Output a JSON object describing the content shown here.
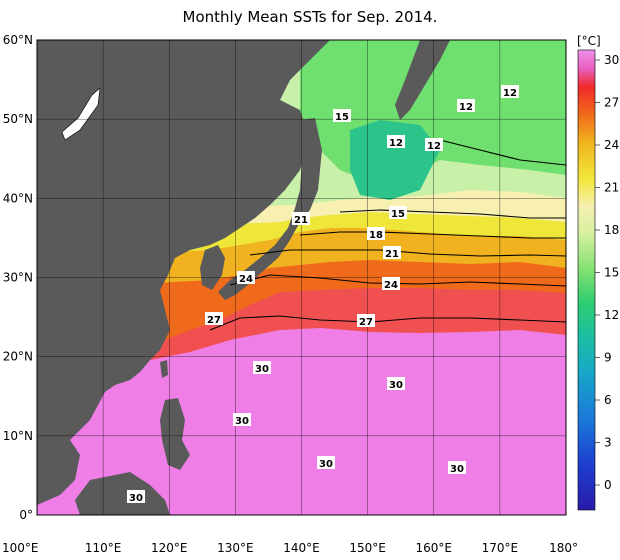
{
  "title": "Monthly Mean SSTs for Sep. 2014.",
  "colorbar": {
    "unit_label": "[°C]",
    "ticks": [
      "30",
      "27",
      "24",
      "21",
      "18",
      "15",
      "12",
      "9",
      "6",
      "3",
      "0"
    ]
  },
  "axes": {
    "lat_labels": [
      "60°N",
      "50°N",
      "40°N",
      "30°N",
      "20°N",
      "10°N",
      "0°"
    ],
    "lon_labels": [
      "100°E",
      "110°E",
      "120°E",
      "130°E",
      "140°E",
      "150°E",
      "160°E",
      "170°E",
      "180°"
    ]
  },
  "isotherm_labels": [
    "15",
    "12",
    "12",
    "12",
    "12",
    "21",
    "15",
    "18",
    "21",
    "24",
    "24",
    "27",
    "27",
    "30",
    "30",
    "30",
    "30",
    "30",
    "30"
  ],
  "colors": {
    "land": "#5a5a5a",
    "c30": "#ef7fe6",
    "c28": "#f03a3a",
    "c27": "#f06a1c",
    "c24": "#f0b21e",
    "c21": "#efe63a",
    "c18": "#f7f0b0",
    "c15": "#c8f0a8",
    "c12": "#6fe06f",
    "c10": "#2cc48a"
  }
}
